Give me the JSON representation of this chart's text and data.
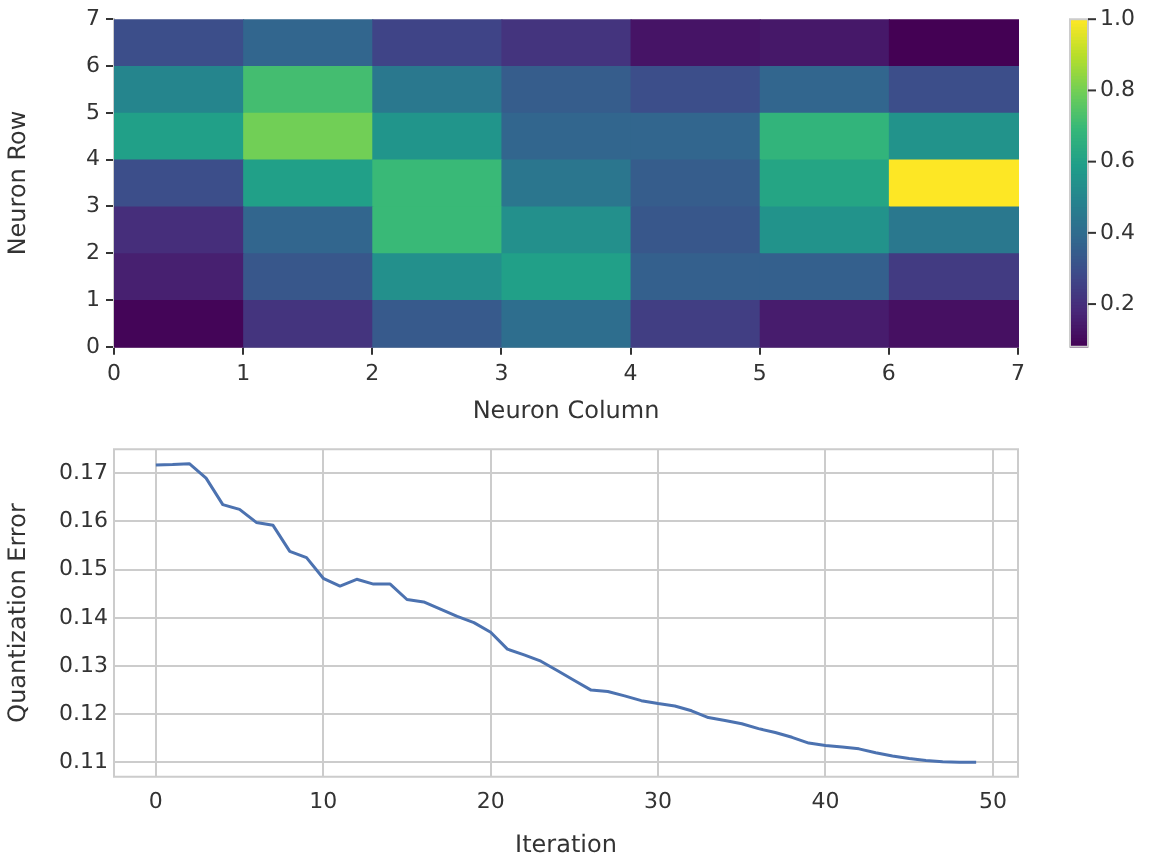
{
  "chart_data": [
    {
      "type": "heatmap",
      "xlabel": "Neuron Column",
      "ylabel": "Neuron Row",
      "xlim": [
        0,
        7
      ],
      "xticks": [
        0,
        1,
        2,
        3,
        4,
        5,
        6,
        7
      ],
      "ylim": [
        0,
        7
      ],
      "yticks": [
        0,
        1,
        2,
        3,
        4,
        5,
        6,
        7
      ],
      "clim": [
        0.08,
        1
      ],
      "cticks": [
        {
          "value": 0.2,
          "label": "0.2"
        },
        {
          "value": 0.4,
          "label": "0.4"
        },
        {
          "value": 0.6,
          "label": "0.6"
        },
        {
          "value": 0.8,
          "label": "0.8"
        },
        {
          "value": 1,
          "label": "1.0"
        }
      ],
      "cells": [
        [
          0.3,
          0.38,
          0.27,
          0.22,
          0.13,
          0.14,
          0.08
        ],
        [
          0.5,
          0.72,
          0.45,
          0.35,
          0.3,
          0.38,
          0.3
        ],
        [
          0.6,
          0.8,
          0.56,
          0.38,
          0.38,
          0.68,
          0.55
        ],
        [
          0.3,
          0.6,
          0.7,
          0.44,
          0.35,
          0.62,
          1.0
        ],
        [
          0.2,
          0.38,
          0.7,
          0.54,
          0.33,
          0.55,
          0.45
        ],
        [
          0.16,
          0.33,
          0.54,
          0.6,
          0.36,
          0.36,
          0.24
        ],
        [
          0.09,
          0.22,
          0.34,
          0.41,
          0.25,
          0.15,
          0.12
        ]
      ]
    },
    {
      "type": "line",
      "xlabel": "Iteration",
      "ylabel": "Quantization Error",
      "color": "#4c72b0",
      "grid": true,
      "xlim": [
        -2.5,
        51.5
      ],
      "xticks": [
        0,
        10,
        20,
        30,
        40,
        50
      ],
      "ylim": [
        0.107,
        0.175
      ],
      "yticks": [
        0.11,
        0.12,
        0.13,
        0.14,
        0.15,
        0.16,
        0.17
      ],
      "x": [
        0,
        1,
        2,
        3,
        4,
        5,
        6,
        7,
        8,
        9,
        10,
        11,
        12,
        13,
        14,
        15,
        16,
        17,
        18,
        19,
        20,
        21,
        22,
        23,
        24,
        25,
        26,
        27,
        28,
        29,
        30,
        31,
        32,
        33,
        34,
        35,
        36,
        37,
        38,
        39,
        40,
        41,
        42,
        43,
        44,
        45,
        46,
        47,
        48,
        49
      ],
      "values": [
        0.1717,
        0.1718,
        0.172,
        0.169,
        0.1635,
        0.1625,
        0.1598,
        0.1592,
        0.1538,
        0.1525,
        0.1482,
        0.1466,
        0.148,
        0.147,
        0.147,
        0.1438,
        0.1433,
        0.1418,
        0.1403,
        0.139,
        0.137,
        0.1335,
        0.1323,
        0.131,
        0.129,
        0.127,
        0.125,
        0.1247,
        0.1238,
        0.1228,
        0.1222,
        0.1217,
        0.1207,
        0.1193,
        0.1187,
        0.118,
        0.117,
        0.1162,
        0.1152,
        0.114,
        0.1135,
        0.1132,
        0.1128,
        0.112,
        0.1113,
        0.1108,
        0.1104,
        0.1101,
        0.11,
        0.11
      ]
    }
  ]
}
